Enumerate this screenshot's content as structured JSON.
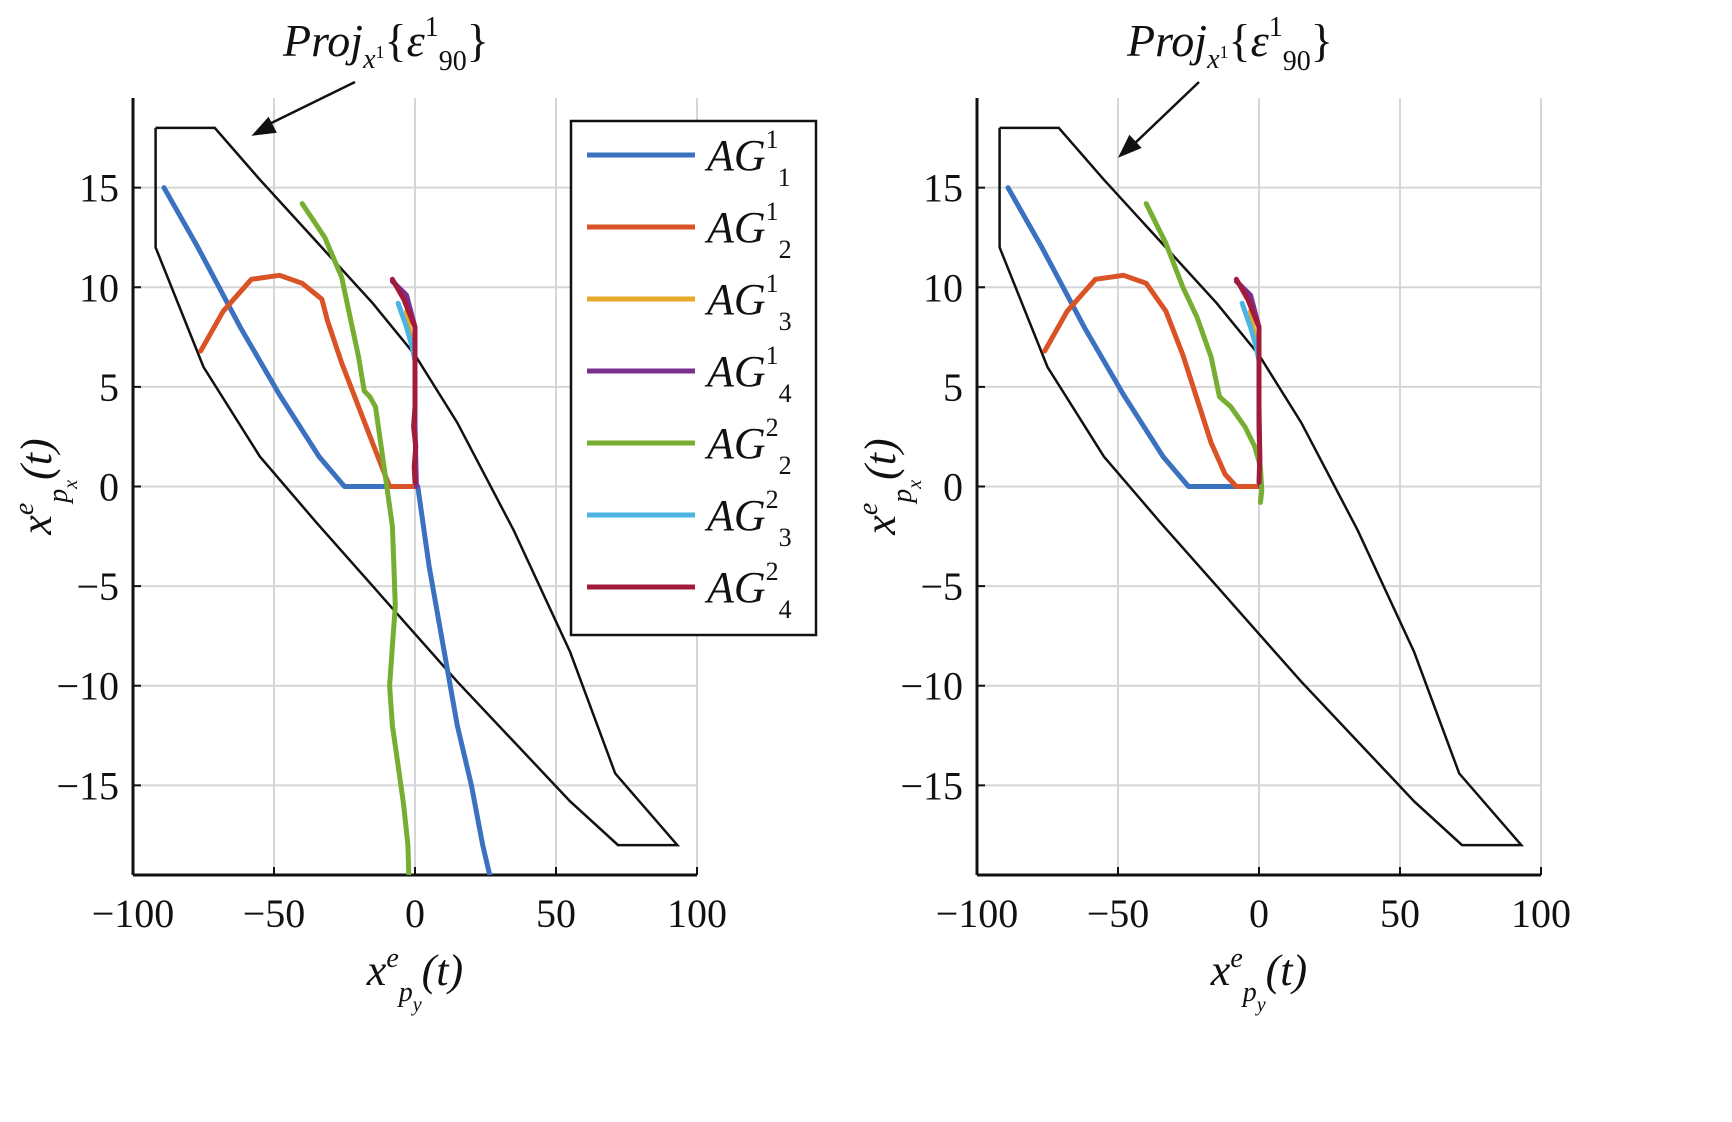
{
  "chart_data": [
    {
      "type": "line",
      "xlim": [
        -100,
        100
      ],
      "ylim": [
        -19.5,
        19.5
      ],
      "xticks": [
        -100,
        -50,
        0,
        50,
        100
      ],
      "yticks": [
        -15,
        -10,
        -5,
        0,
        5,
        10,
        15
      ],
      "xtick_labels": [
        "−100",
        "−50",
        "0",
        "50",
        "100"
      ],
      "ytick_labels": [
        "−15",
        "−10",
        "−5",
        "0",
        "5",
        "10",
        "15"
      ],
      "grid": true,
      "xlabel": {
        "base": "x",
        "sup": "e",
        "sub": "p",
        "subsub": "y",
        "tail": "(t)"
      },
      "ylabel": {
        "base": "x",
        "sup": "e",
        "sub": "p",
        "subsub": "x",
        "tail": "(t)"
      },
      "annotation": {
        "main": "Proj",
        "sub": "x",
        "subsup": "1",
        "open": "{",
        "sym": "ε",
        "sup": "1",
        "sub2": "90",
        "close": "}"
      },
      "annotation_target": [
        -58,
        17.6
      ],
      "legend": {
        "position": "upper-right",
        "entries": [
          {
            "base": "AG",
            "sub": "1",
            "sup": "1",
            "color": "#3b72c0"
          },
          {
            "base": "AG",
            "sub": "2",
            "sup": "1",
            "color": "#d95326"
          },
          {
            "base": "AG",
            "sub": "3",
            "sup": "1",
            "color": "#e6a928"
          },
          {
            "base": "AG",
            "sub": "4",
            "sup": "1",
            "color": "#7b2f8e"
          },
          {
            "base": "AG",
            "sub": "2",
            "sup": "2",
            "color": "#77ad30"
          },
          {
            "base": "AG",
            "sub": "3",
            "sup": "2",
            "color": "#4cb4e0"
          },
          {
            "base": "AG",
            "sub": "4",
            "sup": "2",
            "color": "#a21b3a"
          }
        ]
      },
      "boundary": {
        "x": [
          -92,
          -71,
          -55,
          -35,
          -15,
          0,
          15,
          35,
          55,
          71,
          93,
          93,
          72,
          55,
          35,
          15,
          0,
          -15,
          -35,
          -55,
          -75,
          -92,
          -92
        ],
        "y": [
          18,
          18,
          15.4,
          12.3,
          9.2,
          6.6,
          3.2,
          -2.2,
          -8.3,
          -14.4,
          -18,
          -18,
          -18,
          -15.8,
          -12.8,
          -9.8,
          -7.4,
          -5,
          -1.8,
          1.5,
          6,
          12,
          18
        ]
      },
      "series": [
        {
          "color": "#3b72c0",
          "x": [
            -89,
            -77,
            -62,
            -48,
            -34,
            -25,
            -12,
            0,
            1,
            5,
            10,
            15,
            20,
            24,
            26,
            26.5
          ],
          "y": [
            15,
            12,
            8,
            4.6,
            1.5,
            0,
            0,
            0,
            0,
            -4,
            -8,
            -12,
            -15,
            -18,
            -19.2,
            -19.5
          ]
        },
        {
          "color": "#d95326",
          "x": [
            -76,
            -68,
            -58,
            -48,
            -40,
            -33,
            -31,
            -26,
            -20,
            -14,
            -9,
            -5,
            0
          ],
          "y": [
            6.8,
            8.8,
            10.4,
            10.6,
            10.2,
            9.4,
            8.3,
            6.2,
            4,
            1.8,
            0,
            0,
            0
          ]
        },
        {
          "color": "#e6a928",
          "x": [
            -3,
            -1,
            0
          ],
          "y": [
            8.8,
            7,
            6.8
          ]
        },
        {
          "color": "#7b2f8e",
          "x": [
            -8,
            -3,
            0,
            0,
            0.5
          ],
          "y": [
            10.3,
            9.6,
            8,
            3,
            0
          ]
        },
        {
          "color": "#77ad30",
          "x": [
            -40,
            -32,
            -26,
            -23,
            -20,
            -18,
            -16,
            -14,
            -12,
            -10,
            -8,
            -7.5,
            -7,
            -8,
            -9,
            -8,
            -6,
            -4,
            -2.5,
            -2.2
          ],
          "y": [
            14.2,
            12.5,
            10.5,
            8.5,
            6.5,
            4.8,
            4.5,
            4,
            2,
            0,
            -2,
            -4,
            -6,
            -8,
            -10,
            -12,
            -14,
            -16,
            -18,
            -19.5
          ]
        },
        {
          "color": "#4cb4e0",
          "x": [
            -6,
            -3,
            -1,
            0
          ],
          "y": [
            9.2,
            8,
            7,
            6.3
          ]
        },
        {
          "color": "#a21b3a",
          "x": [
            -8,
            -4,
            0,
            0,
            -0.5,
            0.3,
            -0.3,
            0
          ],
          "y": [
            10.4,
            9.4,
            8,
            4,
            3,
            2,
            1,
            0.2
          ]
        }
      ]
    },
    {
      "type": "line",
      "xlim": [
        -100,
        100
      ],
      "ylim": [
        -19.5,
        19.5
      ],
      "xticks": [
        -100,
        -50,
        0,
        50,
        100
      ],
      "yticks": [
        -15,
        -10,
        -5,
        0,
        5,
        10,
        15
      ],
      "xtick_labels": [
        "−100",
        "−50",
        "0",
        "50",
        "100"
      ],
      "ytick_labels": [
        "−15",
        "−10",
        "−5",
        "0",
        "5",
        "10",
        "15"
      ],
      "grid": true,
      "xlabel": {
        "base": "x",
        "sup": "e",
        "sub": "p",
        "subsub": "y",
        "tail": "(t)"
      },
      "ylabel": {
        "base": "x",
        "sup": "e",
        "sub": "p",
        "subsub": "x",
        "tail": "(t)"
      },
      "annotation": {
        "main": "Proj",
        "sub": "x",
        "subsup": "1",
        "open": "{",
        "sym": "ε",
        "sup": "1",
        "sub2": "90",
        "close": "}"
      },
      "annotation_target": [
        -50,
        16.5
      ],
      "boundary": {
        "x": [
          -92,
          -71,
          -55,
          -35,
          -15,
          0,
          15,
          35,
          55,
          71,
          93,
          93,
          72,
          55,
          35,
          15,
          0,
          -15,
          -35,
          -55,
          -75,
          -92,
          -92
        ],
        "y": [
          18,
          18,
          15.4,
          12.3,
          9.2,
          6.6,
          3.2,
          -2.2,
          -8.3,
          -14.4,
          -18,
          -18,
          -18,
          -15.8,
          -12.8,
          -9.8,
          -7.4,
          -5,
          -1.8,
          1.5,
          6,
          12,
          18
        ]
      },
      "series": [
        {
          "color": "#3b72c0",
          "x": [
            -89,
            -77,
            -62,
            -48,
            -34,
            -25,
            -12,
            0
          ],
          "y": [
            15,
            12,
            8,
            4.6,
            1.5,
            0,
            0,
            0
          ]
        },
        {
          "color": "#d95326",
          "x": [
            -76,
            -68,
            -58,
            -48,
            -40,
            -33,
            -27,
            -22,
            -17,
            -12,
            -8,
            -5,
            0
          ],
          "y": [
            6.8,
            8.8,
            10.4,
            10.6,
            10.2,
            8.8,
            6.6,
            4.4,
            2.2,
            0.6,
            0,
            0,
            0
          ]
        },
        {
          "color": "#e6a928",
          "x": [
            -3,
            -1,
            0
          ],
          "y": [
            8.8,
            7,
            6.8
          ]
        },
        {
          "color": "#7b2f8e",
          "x": [
            -8,
            -3,
            0,
            0,
            0.5
          ],
          "y": [
            10.3,
            9.6,
            8,
            3,
            0
          ]
        },
        {
          "color": "#77ad30",
          "x": [
            -40,
            -33,
            -27,
            -22,
            -17,
            -14,
            -10,
            -5,
            -1.5,
            0.5,
            1,
            0.5
          ],
          "y": [
            14.2,
            12.2,
            10,
            8.5,
            6.5,
            4.5,
            4,
            3,
            2,
            1,
            -0.2,
            -0.8
          ]
        },
        {
          "color": "#4cb4e0",
          "x": [
            -6,
            -3,
            -1,
            0
          ],
          "y": [
            9.2,
            8,
            7,
            6.3
          ]
        },
        {
          "color": "#a21b3a",
          "x": [
            -8,
            -4,
            0,
            0,
            0.3,
            0
          ],
          "y": [
            10.4,
            9.4,
            8,
            4,
            1.5,
            0.2
          ]
        }
      ]
    }
  ]
}
